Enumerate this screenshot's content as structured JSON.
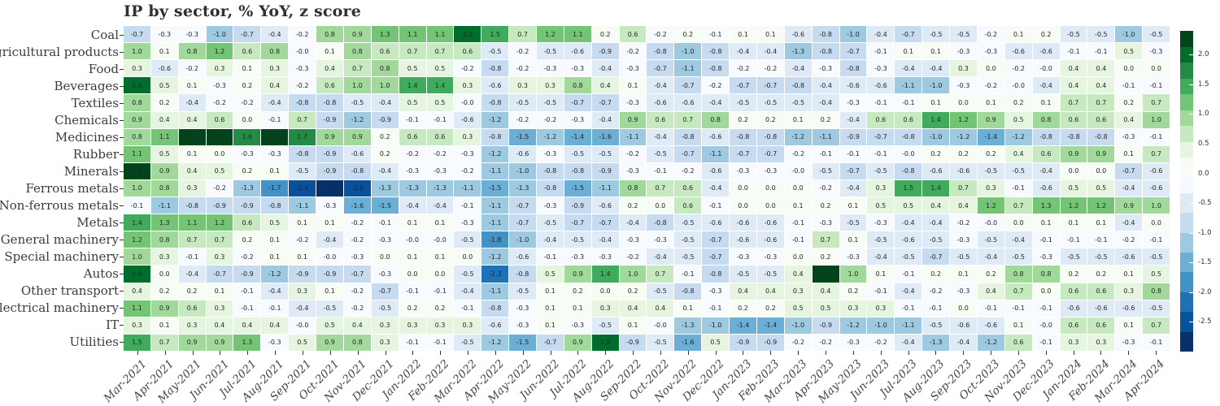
{
  "title": "IP by sector, % YoY, z score",
  "chart_data": {
    "type": "heatmap",
    "title": "IP by sector, % YoY, z score",
    "value_note": "z score of % YoY industrial production by sector; annotated cell values",
    "rows": [
      "Coal",
      "Agricultural products",
      "Food",
      "Beverages",
      "Textiles",
      "Chemicals",
      "Medicines",
      "Rubber",
      "Minerals",
      "Ferrous metals",
      "Non-ferrous metals",
      "Metals",
      "General machinery",
      "Special machinery",
      "Autos",
      "Other transport",
      "Electrical machinery",
      "IT",
      "Utilities"
    ],
    "columns": [
      "Mar-2021",
      "Apr-2021",
      "May-2021",
      "Jun-2021",
      "Jul-2021",
      "Aug-2021",
      "Sep-2021",
      "Oct-2021",
      "Nov-2021",
      "Dec-2021",
      "Jan-2022",
      "Feb-2022",
      "Mar-2022",
      "Apr-2022",
      "May-2022",
      "Jun-2022",
      "Jul-2022",
      "Aug-2022",
      "Sep-2022",
      "Oct-2022",
      "Nov-2022",
      "Dec-2022",
      "Jan-2023",
      "Feb-2023",
      "Mar-2023",
      "Apr-2023",
      "May-2023",
      "Jun-2023",
      "Jul-2023",
      "Aug-2023",
      "Sep-2023",
      "Oct-2023",
      "Nov-2023",
      "Dec-2023",
      "Jan-2024",
      "Feb-2024",
      "Mar-2024",
      "Apr-2024"
    ],
    "values": [
      [
        "-0.7",
        "-0.3",
        "-0.3",
        "-1.0",
        "-0.7",
        "-0.4",
        "-0.2",
        "0.8",
        "0.9",
        "1.3",
        "1.1",
        "1.1",
        "2.1",
        "1.5",
        "0.7",
        "1.2",
        "1.1",
        "0.2",
        "0.6",
        "-0.2",
        "0.2",
        "-0.1",
        "0.1",
        "0.1",
        "-0.6",
        "-0.8",
        "-1.0",
        "-0.4",
        "-0.7",
        "-0.5",
        "-0.5",
        "-0.2",
        "0.1",
        "0.2",
        "-0.5",
        "-0.5",
        "-1.0",
        "-0.5"
      ],
      [
        "1.0",
        "0.1",
        "0.8",
        "1.2",
        "0.6",
        "0.8",
        "-0.0",
        "0.1",
        "0.8",
        "0.6",
        "0.7",
        "0.7",
        "0.6",
        "-0.5",
        "-0.2",
        "-0.5",
        "-0.6",
        "-0.9",
        "-0.2",
        "-0.8",
        "-1.0",
        "-0.8",
        "-0.4",
        "-0.4",
        "-1.3",
        "-0.8",
        "-0.7",
        "-0.1",
        "0.1",
        "0.1",
        "-0.3",
        "-0.3",
        "-0.6",
        "-0.6",
        "-0.1",
        "-0.1",
        "0.5",
        "-0.3"
      ],
      [
        "0.3",
        "-0.6",
        "-0.2",
        "0.3",
        "0.1",
        "0.3",
        "-0.3",
        "0.4",
        "0.7",
        "0.8",
        "0.5",
        "0.5",
        "-0.2",
        "-0.8",
        "-0.2",
        "-0.3",
        "-0.3",
        "-0.4",
        "-0.3",
        "-0.7",
        "-1.1",
        "-0.8",
        "-0.2",
        "-0.2",
        "-0.4",
        "-0.3",
        "-0.8",
        "-0.3",
        "-0.4",
        "-0.4",
        "0.3",
        "0.0",
        "-0.2",
        "-0.0",
        "0.4",
        "0.4",
        "0.0",
        "0.0"
      ],
      [
        "2.0",
        "0.5",
        "0.1",
        "-0.3",
        "0.2",
        "0.4",
        "-0.2",
        "0.6",
        "1.0",
        "1.0",
        "1.4",
        "1.4",
        "0.3",
        "-0.6",
        "0.3",
        "0.3",
        "0.8",
        "0.4",
        "0.1",
        "-0.4",
        "-0.7",
        "-0.2",
        "-0.7",
        "-0.7",
        "-0.8",
        "-0.4",
        "-0.6",
        "-0.6",
        "-1.1",
        "-1.0",
        "-0.3",
        "-0.2",
        "-0.0",
        "-0.4",
        "0.4",
        "0.4",
        "-0.1",
        "-0.1"
      ],
      [
        "0.8",
        "0.2",
        "-0.4",
        "-0.2",
        "-0.2",
        "-0.4",
        "-0.8",
        "-0.8",
        "-0.5",
        "-0.4",
        "0.5",
        "0.5",
        "-0.0",
        "-0.8",
        "-0.5",
        "-0.5",
        "-0.7",
        "-0.7",
        "-0.3",
        "-0.6",
        "-0.6",
        "-0.4",
        "-0.5",
        "-0.5",
        "-0.5",
        "-0.4",
        "-0.3",
        "-0.1",
        "-0.1",
        "0.1",
        "0.0",
        "0.1",
        "0.2",
        "0.1",
        "0.7",
        "0.7",
        "0.2",
        "0.7"
      ],
      [
        "0.9",
        "0.4",
        "0.4",
        "0.6",
        "0.0",
        "-0.1",
        "0.7",
        "-0.9",
        "-1.2",
        "-0.9",
        "-0.1",
        "-0.1",
        "-0.6",
        "-1.2",
        "-0.2",
        "-0.2",
        "-0.3",
        "-0.4",
        "0.9",
        "0.6",
        "0.7",
        "0.8",
        "0.2",
        "0.2",
        "0.1",
        "0.2",
        "-0.4",
        "0.6",
        "0.6",
        "1.4",
        "1.2",
        "0.9",
        "0.5",
        "0.8",
        "0.6",
        "0.6",
        "0.4",
        "1.0"
      ],
      [
        "0.8",
        "1.1",
        "2.3",
        "2.2",
        "1.6",
        "2.2",
        "1.7",
        "0.9",
        "0.9",
        "0.2",
        "0.6",
        "0.6",
        "0.3",
        "-0.8",
        "-1.5",
        "-1.2",
        "-1.4",
        "-1.6",
        "-1.1",
        "-0.4",
        "-0.8",
        "-0.6",
        "-0.8",
        "-0.8",
        "-1.2",
        "-1.1",
        "-0.9",
        "-0.7",
        "-0.8",
        "-1.0",
        "-1.2",
        "-1.4",
        "-1.2",
        "-0.8",
        "-0.8",
        "-0.8",
        "-0.3",
        "-0.1"
      ],
      [
        "1.1",
        "0.5",
        "0.1",
        "0.0",
        "-0.3",
        "-0.3",
        "-0.8",
        "-0.9",
        "-0.6",
        "0.2",
        "-0.2",
        "-0.2",
        "-0.3",
        "-1.2",
        "-0.6",
        "-0.3",
        "-0.5",
        "-0.5",
        "-0.2",
        "-0.5",
        "-0.7",
        "-1.1",
        "-0.7",
        "-0.7",
        "-0.2",
        "-0.1",
        "-0.1",
        "-0.1",
        "-0.0",
        "0.2",
        "0.2",
        "0.2",
        "0.4",
        "0.6",
        "0.9",
        "0.9",
        "0.1",
        "0.7"
      ],
      [
        "2.2",
        "0.9",
        "0.4",
        "0.5",
        "0.2",
        "0.1",
        "-0.5",
        "-0.9",
        "-0.8",
        "-0.4",
        "-0.3",
        "-0.3",
        "-0.2",
        "-1.1",
        "-1.0",
        "-0.8",
        "-0.8",
        "-0.9",
        "-0.3",
        "-0.1",
        "-0.2",
        "-0.6",
        "-0.3",
        "-0.3",
        "-0.0",
        "-0.5",
        "-0.7",
        "-0.5",
        "-0.8",
        "-0.6",
        "-0.6",
        "-0.5",
        "-0.5",
        "-0.4",
        "0.0",
        "0.0",
        "-0.7",
        "-0.6"
      ],
      [
        "1.0",
        "0.8",
        "0.3",
        "-0.2",
        "-1.3",
        "-1.7",
        "-2.4",
        "-2.9",
        "-2.6",
        "-1.3",
        "-1.3",
        "-1.3",
        "-1.1",
        "-1.5",
        "-1.3",
        "-0.8",
        "-1.5",
        "-1.1",
        "0.8",
        "0.7",
        "0.6",
        "-0.4",
        "0.0",
        "0.0",
        "0.0",
        "-0.2",
        "-0.4",
        "0.3",
        "1.5",
        "1.4",
        "0.7",
        "0.3",
        "-0.1",
        "-0.6",
        "0.5",
        "0.5",
        "-0.4",
        "-0.6"
      ],
      [
        "-0.1",
        "-1.1",
        "-0.8",
        "-0.9",
        "-0.9",
        "-0.8",
        "-1.1",
        "-0.3",
        "-1.6",
        "-1.5",
        "-0.4",
        "-0.4",
        "-0.1",
        "-1.1",
        "-0.7",
        "-0.3",
        "-0.9",
        "-0.6",
        "0.2",
        "0.0",
        "0.6",
        "-0.1",
        "0.0",
        "0.0",
        "0.1",
        "0.2",
        "0.1",
        "0.5",
        "0.5",
        "0.4",
        "0.4",
        "1.2",
        "0.7",
        "1.3",
        "1.2",
        "1.2",
        "0.9",
        "1.0"
      ],
      [
        "1.4",
        "1.3",
        "1.1",
        "1.2",
        "0.6",
        "0.5",
        "0.1",
        "0.1",
        "-0.2",
        "-0.1",
        "0.1",
        "0.1",
        "-0.3",
        "-1.1",
        "-0.7",
        "-0.5",
        "-0.7",
        "-0.7",
        "-0.4",
        "-0.8",
        "-0.5",
        "-0.6",
        "-0.6",
        "-0.6",
        "-0.1",
        "-0.3",
        "-0.5",
        "-0.3",
        "-0.4",
        "-0.4",
        "-0.2",
        "-0.0",
        "0.0",
        "0.1",
        "0.1",
        "0.1",
        "-0.4",
        "0.0"
      ],
      [
        "1.2",
        "0.8",
        "0.7",
        "0.7",
        "0.2",
        "0.1",
        "-0.2",
        "-0.4",
        "-0.2",
        "-0.3",
        "-0.0",
        "-0.0",
        "-0.5",
        "-1.8",
        "-1.0",
        "-0.4",
        "-0.5",
        "-0.4",
        "-0.3",
        "-0.3",
        "-0.5",
        "-0.7",
        "-0.6",
        "-0.6",
        "-0.1",
        "0.7",
        "0.1",
        "-0.5",
        "-0.6",
        "-0.5",
        "-0.3",
        "-0.5",
        "-0.4",
        "-0.1",
        "-0.1",
        "-0.1",
        "-0.2",
        "-0.1"
      ],
      [
        "1.0",
        "0.3",
        "-0.1",
        "0.3",
        "-0.2",
        "0.1",
        "0.1",
        "-0.0",
        "-0.3",
        "0.0",
        "0.1",
        "0.1",
        "0.0",
        "-1.2",
        "-0.6",
        "-0.1",
        "-0.3",
        "-0.3",
        "-0.2",
        "-0.4",
        "-0.5",
        "-0.7",
        "-0.3",
        "-0.3",
        "0.0",
        "0.2",
        "-0.3",
        "-0.4",
        "-0.5",
        "-0.7",
        "-0.5",
        "-0.4",
        "-0.5",
        "-0.3",
        "-0.5",
        "-0.5",
        "-0.6",
        "-0.5"
      ],
      [
        "2.0",
        "0.0",
        "-0.4",
        "-0.7",
        "-0.9",
        "-1.2",
        "-0.9",
        "-0.9",
        "-0.7",
        "-0.3",
        "0.0",
        "0.0",
        "-0.5",
        "-2.3",
        "-0.8",
        "0.5",
        "0.9",
        "1.4",
        "1.0",
        "0.7",
        "-0.1",
        "-0.8",
        "-0.5",
        "-0.5",
        "0.4",
        "2.2",
        "1.0",
        "0.1",
        "-0.1",
        "0.2",
        "0.1",
        "0.2",
        "0.8",
        "0.8",
        "0.2",
        "0.2",
        "0.1",
        "0.5"
      ],
      [
        "0.4",
        "0.2",
        "0.2",
        "0.1",
        "-0.1",
        "-0.4",
        "0.3",
        "0.1",
        "-0.2",
        "-0.7",
        "-0.1",
        "-0.1",
        "-0.4",
        "-1.1",
        "-0.5",
        "0.1",
        "0.2",
        "0.0",
        "0.2",
        "-0.5",
        "-0.8",
        "-0.3",
        "0.4",
        "0.4",
        "0.3",
        "0.4",
        "0.2",
        "-0.1",
        "-0.4",
        "-0.2",
        "-0.3",
        "0.4",
        "0.7",
        "0.0",
        "0.6",
        "0.6",
        "0.3",
        "0.8"
      ],
      [
        "1.1",
        "0.9",
        "0.6",
        "0.3",
        "-0.1",
        "-0.1",
        "-0.4",
        "-0.5",
        "-0.2",
        "-0.5",
        "0.2",
        "0.2",
        "-0.1",
        "-0.8",
        "-0.3",
        "0.1",
        "0.1",
        "0.3",
        "0.4",
        "0.4",
        "0.1",
        "-0.1",
        "0.2",
        "0.2",
        "0.5",
        "0.5",
        "0.3",
        "0.3",
        "-0.1",
        "-0.1",
        "0.0",
        "-0.1",
        "-0.1",
        "-0.1",
        "-0.6",
        "-0.6",
        "-0.6",
        "-0.5"
      ],
      [
        "0.3",
        "0.1",
        "0.3",
        "0.4",
        "0.4",
        "0.4",
        "-0.0",
        "0.5",
        "0.4",
        "0.3",
        "0.3",
        "0.3",
        "0.3",
        "-0.6",
        "-0.3",
        "0.1",
        "-0.3",
        "-0.5",
        "0.1",
        "-0.0",
        "-1.3",
        "-1.0",
        "-1.4",
        "-1.4",
        "-1.0",
        "-0.9",
        "-1.2",
        "-1.0",
        "-1.1",
        "-0.5",
        "-0.6",
        "-0.6",
        "0.1",
        "-0.0",
        "0.6",
        "0.6",
        "0.1",
        "0.7"
      ],
      [
        "1.5",
        "0.7",
        "0.9",
        "0.9",
        "1.3",
        "-0.3",
        "0.5",
        "0.9",
        "0.8",
        "0.3",
        "-0.1",
        "-0.1",
        "-0.5",
        "-1.2",
        "-1.5",
        "-0.7",
        "0.9",
        "1.9",
        "-0.9",
        "-0.5",
        "-1.6",
        "0.5",
        "-0.9",
        "-0.9",
        "-0.2",
        "-0.2",
        "-0.3",
        "-0.2",
        "-0.4",
        "-1.3",
        "-0.4",
        "-1.2",
        "0.6",
        "-0.1",
        "0.3",
        "0.3",
        "-0.3",
        "-0.1"
      ]
    ],
    "colorbar": {
      "ticks": [
        "2.0",
        "1.5",
        "1.0",
        "0.5",
        "0.0",
        "-0.5",
        "-1.0",
        "-1.5",
        "-2.0",
        "-2.5"
      ],
      "vmax": 2.4,
      "vmin": -3.0
    },
    "palette": {
      "greens_light_to_dark": [
        "#f7fcf5",
        "#e5f5e0",
        "#c7e9c0",
        "#a1d99b",
        "#74c476",
        "#41ab5d",
        "#238b45",
        "#006d2c",
        "#00441b"
      ],
      "blues_light_to_dark": [
        "#f7fbff",
        "#deebf7",
        "#c6dbef",
        "#9ecae1",
        "#6baed6",
        "#4292c6",
        "#2171b5",
        "#08519c",
        "#08306b"
      ]
    },
    "layout": {
      "legend_position": "right",
      "grid": false,
      "x_tick_rotation_deg": 45
    }
  }
}
